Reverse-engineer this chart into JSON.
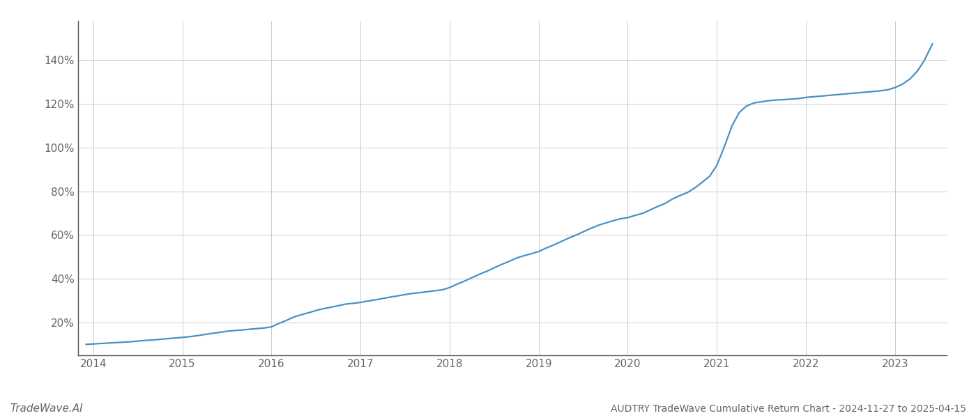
{
  "title": "AUDTRY TradeWave Cumulative Return Chart - 2024-11-27 to 2025-04-15",
  "watermark": "TradeWave.AI",
  "line_color": "#4a90c4",
  "background_color": "#ffffff",
  "grid_color": "#cccccc",
  "axis_color": "#555555",
  "tick_color": "#666666",
  "line_width": 1.6,
  "x_values": [
    2013.92,
    2014.0,
    2014.08,
    2014.17,
    2014.25,
    2014.33,
    2014.42,
    2014.5,
    2014.58,
    2014.67,
    2014.75,
    2014.83,
    2014.92,
    2015.0,
    2015.08,
    2015.17,
    2015.25,
    2015.33,
    2015.42,
    2015.5,
    2015.58,
    2015.67,
    2015.75,
    2015.83,
    2015.92,
    2016.0,
    2016.08,
    2016.17,
    2016.25,
    2016.33,
    2016.42,
    2016.5,
    2016.58,
    2016.67,
    2016.75,
    2016.83,
    2016.92,
    2017.0,
    2017.08,
    2017.17,
    2017.25,
    2017.33,
    2017.42,
    2017.5,
    2017.58,
    2017.67,
    2017.75,
    2017.83,
    2017.92,
    2018.0,
    2018.08,
    2018.17,
    2018.25,
    2018.33,
    2018.42,
    2018.5,
    2018.58,
    2018.67,
    2018.75,
    2018.83,
    2018.92,
    2019.0,
    2019.08,
    2019.17,
    2019.25,
    2019.33,
    2019.42,
    2019.5,
    2019.58,
    2019.67,
    2019.75,
    2019.83,
    2019.92,
    2020.0,
    2020.08,
    2020.17,
    2020.25,
    2020.33,
    2020.42,
    2020.5,
    2020.58,
    2020.67,
    2020.75,
    2020.83,
    2020.92,
    2021.0,
    2021.08,
    2021.17,
    2021.25,
    2021.33,
    2021.42,
    2021.5,
    2021.58,
    2021.67,
    2021.75,
    2021.83,
    2021.92,
    2022.0,
    2022.08,
    2022.17,
    2022.25,
    2022.33,
    2022.42,
    2022.5,
    2022.58,
    2022.67,
    2022.75,
    2022.83,
    2022.92,
    2023.0,
    2023.08,
    2023.17,
    2023.25,
    2023.33,
    2023.42
  ],
  "y_values": [
    10.0,
    10.2,
    10.4,
    10.6,
    10.8,
    11.0,
    11.2,
    11.5,
    11.8,
    12.0,
    12.3,
    12.6,
    12.9,
    13.2,
    13.5,
    14.0,
    14.5,
    15.0,
    15.5,
    16.0,
    16.3,
    16.6,
    16.9,
    17.2,
    17.5,
    18.0,
    19.5,
    21.0,
    22.5,
    23.5,
    24.5,
    25.5,
    26.3,
    27.0,
    27.7,
    28.4,
    28.8,
    29.2,
    29.8,
    30.4,
    31.0,
    31.6,
    32.2,
    32.8,
    33.3,
    33.7,
    34.1,
    34.5,
    35.0,
    36.0,
    37.5,
    39.0,
    40.5,
    42.0,
    43.5,
    45.0,
    46.5,
    48.0,
    49.5,
    50.5,
    51.5,
    52.5,
    54.0,
    55.5,
    57.0,
    58.5,
    60.0,
    61.5,
    63.0,
    64.5,
    65.5,
    66.5,
    67.5,
    68.0,
    69.0,
    70.0,
    71.5,
    73.0,
    74.5,
    76.5,
    78.0,
    79.5,
    81.5,
    84.0,
    87.0,
    92.0,
    100.0,
    110.0,
    116.0,
    119.0,
    120.5,
    121.0,
    121.5,
    121.8,
    122.0,
    122.2,
    122.5,
    123.0,
    123.3,
    123.6,
    123.9,
    124.2,
    124.5,
    124.8,
    125.1,
    125.4,
    125.7,
    126.0,
    126.5,
    127.5,
    129.0,
    131.5,
    135.0,
    140.0,
    147.5
  ],
  "yticks": [
    20,
    40,
    60,
    80,
    100,
    120,
    140
  ],
  "xticks": [
    2014,
    2015,
    2016,
    2017,
    2018,
    2019,
    2020,
    2021,
    2022,
    2023
  ],
  "ylim": [
    5,
    158
  ],
  "xlim": [
    2013.83,
    2023.58
  ]
}
